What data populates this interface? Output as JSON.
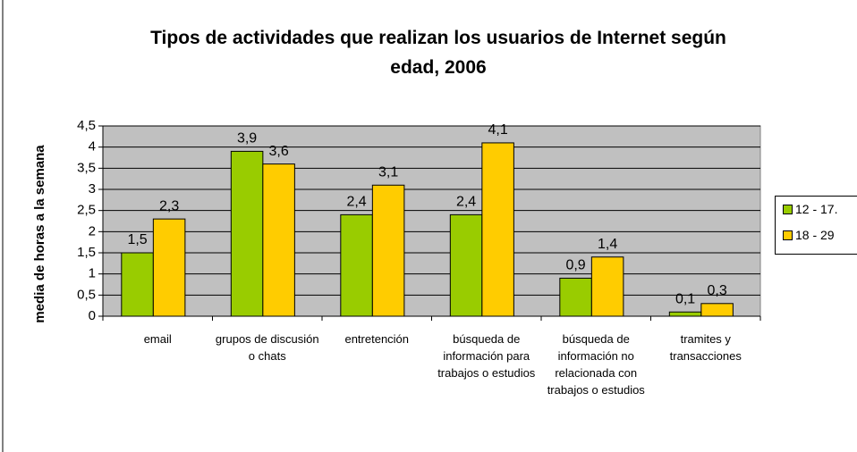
{
  "chart_data": {
    "type": "bar",
    "title": "Tipos de actividades que realizan los usuarios de Internet según edad, 2006",
    "y_label": "media de horas a la semana",
    "categories": [
      "email",
      "grupos de discusión o chats",
      "entretención",
      "búsqueda de información para trabajos o estudios",
      "búsqueda de información no relacionada con trabajos o estudios",
      "tramites y transacciones"
    ],
    "series": [
      {
        "name": "12 - 17.",
        "color": "#99cc00",
        "values": [
          1.5,
          3.9,
          2.4,
          2.4,
          0.9,
          0.1
        ],
        "value_labels": [
          "1,5",
          "3,9",
          "2,4",
          "2,4",
          "0,9",
          "0,1"
        ]
      },
      {
        "name": "18 - 29",
        "color": "#ffcc00",
        "values": [
          2.3,
          3.6,
          3.1,
          4.1,
          1.4,
          0.3
        ],
        "value_labels": [
          "2,3",
          "3,6",
          "3,1",
          "4,1",
          "1,4",
          "0,3"
        ]
      }
    ],
    "ylim": [
      0,
      4.5
    ],
    "yticks": [
      0,
      {
        "value": 0.5,
        "label": "0,5"
      },
      1,
      {
        "value": 1.5,
        "label": "1,5"
      },
      2,
      {
        "value": 2.5,
        "label": "2,5"
      },
      3,
      {
        "value": 3.5,
        "label": "3,5"
      },
      4,
      {
        "value": 4.5,
        "label": "4,5"
      }
    ],
    "grid": true,
    "legend": "right",
    "plot_background": "#c0c0c0"
  }
}
